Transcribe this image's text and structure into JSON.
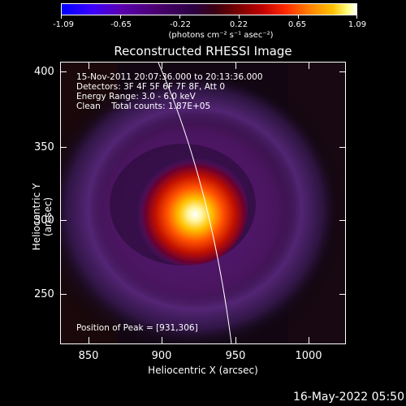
{
  "colorbar": {
    "ticks": [
      "-1.09",
      "-0.65",
      "-0.22",
      "0.22",
      "0.65",
      "1.09"
    ],
    "units": "(photons cm⁻² s⁻¹ asec⁻²)"
  },
  "title": "Reconstructed RHESSI Image",
  "info": {
    "time": "15-Nov-2011 20:07:36.000 to 20:13:36.000",
    "detectors": "Detectors: 3F 4F 5F 6F 7F 8F, Att 0",
    "energy": "Energy Range: 3.0 - 6.0 keV",
    "clean": "Clean    Total counts: 1.87E+05",
    "peak": "Position of Peak = [931,306]"
  },
  "axes": {
    "x_title": "Heliocentric X (arcsec)",
    "y_title": "Heliocentric Y (arcsec)",
    "x_ticks": [
      "850",
      "900",
      "950",
      "1000"
    ],
    "y_ticks": [
      "400",
      "350",
      "300",
      "250"
    ]
  },
  "timestamp": "16-May-2022 05:50"
}
